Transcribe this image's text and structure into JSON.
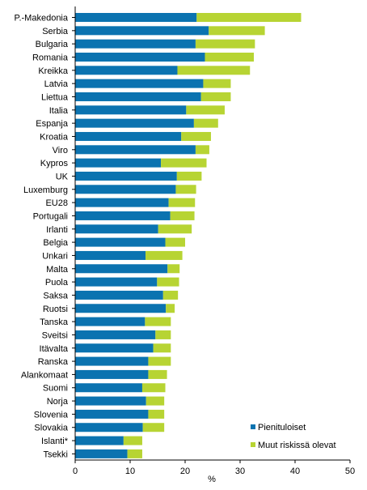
{
  "chart_data": {
    "type": "bar",
    "orientation": "horizontal",
    "stacked": true,
    "categories": [
      "P.-Makedonia",
      "Serbia",
      "Bulgaria",
      "Romania",
      "Kreikka",
      "Latvia",
      "Liettua",
      "Italia",
      "Espanja",
      "Kroatia",
      "Viro",
      "Kypros",
      "UK",
      "Luxemburg",
      "EU28",
      "Portugali",
      "Irlanti",
      "Belgia",
      "Unkari",
      "Malta",
      "Puola",
      "Saksa",
      "Ruotsi",
      "Tanska",
      "Sveitsi",
      "Itävalta",
      "Ranska",
      "Alankomaat",
      "Suomi",
      "Norja",
      "Slovenia",
      "Slovakia",
      "Islanti*",
      "Tsekki"
    ],
    "series": [
      {
        "name": "Pienituloiset",
        "color": "#0b73b0",
        "values": [
          22.1,
          24.3,
          21.9,
          23.6,
          18.6,
          23.3,
          22.9,
          20.2,
          21.6,
          19.3,
          21.9,
          15.6,
          18.5,
          18.3,
          17.0,
          17.3,
          15.1,
          16.4,
          12.8,
          16.8,
          14.9,
          16.0,
          16.5,
          12.7,
          14.6,
          14.2,
          13.3,
          13.3,
          12.2,
          12.9,
          13.3,
          12.3,
          8.8,
          9.5
        ]
      },
      {
        "name": "Muut riskissä olevat",
        "color": "#b7d433",
        "values": [
          19.0,
          10.2,
          10.8,
          8.9,
          13.2,
          5.0,
          5.4,
          7.0,
          4.4,
          5.4,
          2.5,
          8.3,
          4.5,
          3.7,
          4.8,
          4.4,
          6.1,
          3.6,
          6.7,
          2.2,
          4.0,
          2.7,
          1.6,
          4.7,
          2.8,
          3.2,
          4.1,
          3.4,
          4.2,
          3.3,
          2.9,
          3.9,
          3.4,
          2.7
        ]
      }
    ],
    "xlabel": "%",
    "ylabel": "",
    "xlim": [
      0,
      50
    ],
    "x_ticks": [
      0,
      10,
      20,
      30,
      40,
      50
    ],
    "grid": false,
    "legend_position": "bottom-right"
  }
}
